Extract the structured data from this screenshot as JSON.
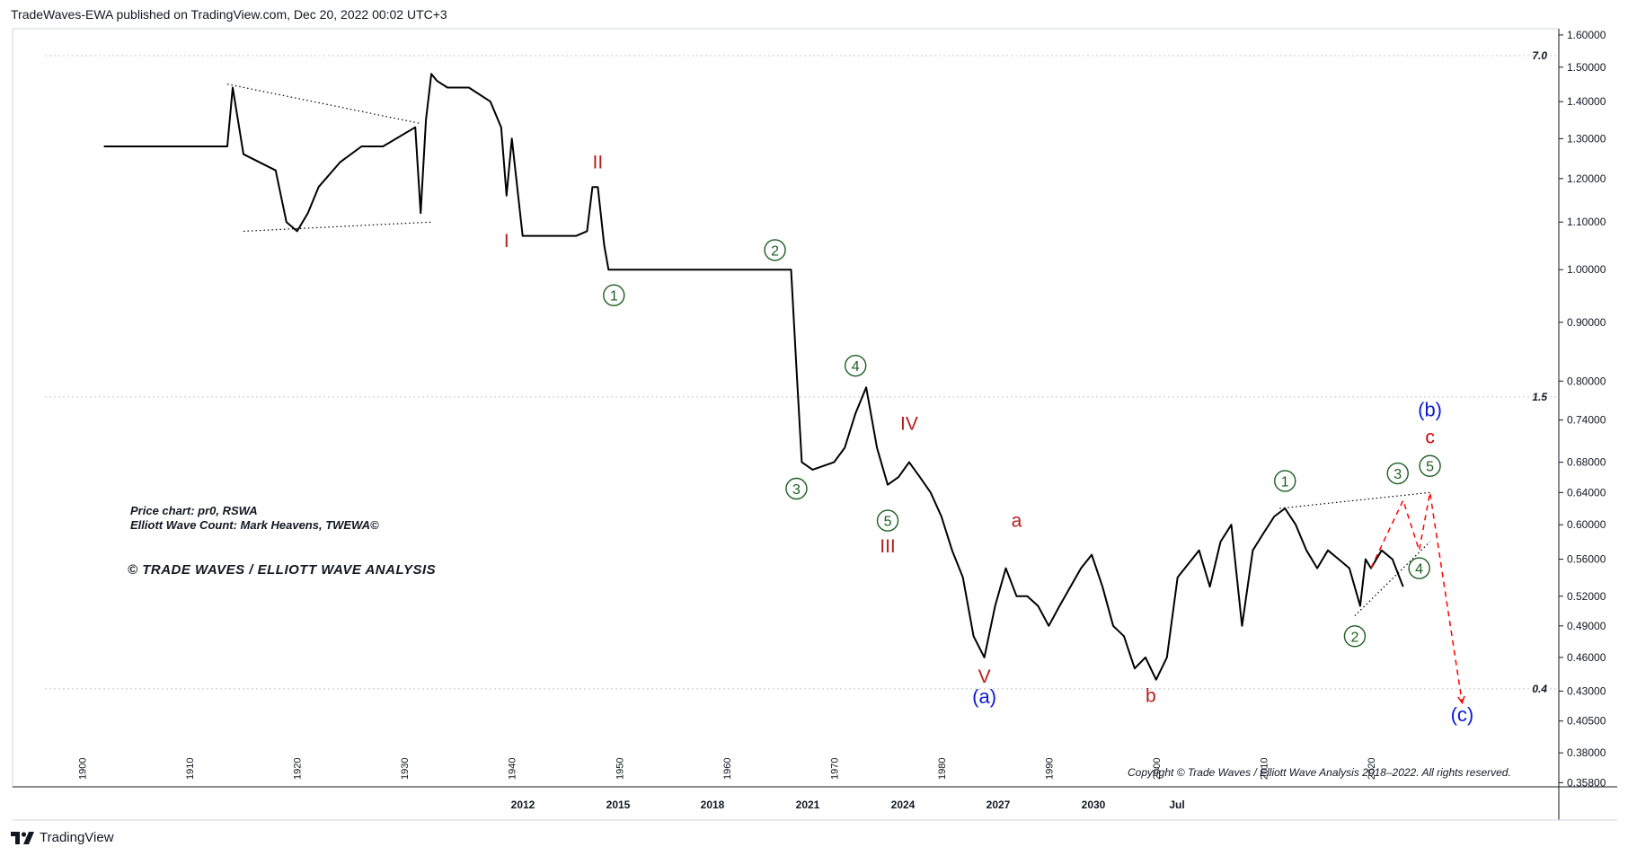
{
  "header": {
    "published": "TradeWaves-EWA published on TradingView.com, Dec 20, 2022 00:02 UTC+3"
  },
  "footer": {
    "brand": "TradingView",
    "logo_icon": "tradingview-logo-icon"
  },
  "chart_data": {
    "type": "line",
    "title": "",
    "scale": "log",
    "grid": true,
    "ylim": [
      0.355,
      1.62
    ],
    "y_ticks": [
      "1.60000",
      "1.50000",
      "1.40000",
      "1.30000",
      "1.20000",
      "1.10000",
      "1.00000",
      "0.90000",
      "0.80000",
      "0.74000",
      "0.68000",
      "0.64000",
      "0.60000",
      "0.56000",
      "0.52000",
      "0.49000",
      "0.46000",
      "0.43000",
      "0.40500",
      "0.38000",
      "0.35800"
    ],
    "x_ticks_bottom": [
      "2012",
      "2015",
      "2018",
      "2021",
      "2024",
      "2027",
      "2030",
      "Jul"
    ],
    "x_ticks_rotated": [
      "1900",
      "1910",
      "1920",
      "1930",
      "1940",
      "1950",
      "1960",
      "1970",
      "1980",
      "1990",
      "2000",
      "2010",
      "2020"
    ],
    "overlay_scale_labels": [
      "7.0",
      "1.5",
      "0.4"
    ],
    "series": [
      {
        "color": "#000000",
        "x": [
          1902,
          1912,
          1913.5,
          1914,
          1915,
          1918,
          1919,
          1920,
          1921,
          1922,
          1924,
          1926,
          1928,
          1931,
          1931.5,
          1932,
          1932.5,
          1933,
          1934,
          1936,
          1938,
          1939,
          1939.5,
          1940,
          1941,
          1946,
          1947,
          1947.5,
          1948,
          1948.6,
          1949,
          1950,
          1955,
          1960,
          1966,
          1966.5,
          1967,
          1968,
          1970,
          1971,
          1972,
          1973,
          1974,
          1975,
          1976,
          1977,
          1978,
          1979,
          1980,
          1981,
          1982,
          1983,
          1984,
          1985,
          1986,
          1987,
          1988,
          1989,
          1990,
          1991,
          1993,
          1994,
          1995,
          1996,
          1997,
          1998,
          1999,
          2000,
          2001,
          2002,
          2004,
          2005,
          2006,
          2007,
          2008,
          2009,
          2010,
          2011,
          2012,
          2013,
          2014,
          2015,
          2016,
          2017,
          2018,
          2019,
          2019.5,
          2020,
          2021,
          2022,
          2023
        ],
        "y": [
          1.28,
          1.28,
          1.28,
          1.44,
          1.26,
          1.22,
          1.1,
          1.08,
          1.12,
          1.18,
          1.24,
          1.28,
          1.28,
          1.33,
          1.12,
          1.35,
          1.48,
          1.46,
          1.44,
          1.44,
          1.4,
          1.33,
          1.16,
          1.3,
          1.07,
          1.07,
          1.08,
          1.18,
          1.18,
          1.05,
          1.0,
          1.0,
          1.0,
          1.0,
          1.0,
          0.82,
          0.68,
          0.67,
          0.68,
          0.7,
          0.75,
          0.79,
          0.7,
          0.65,
          0.66,
          0.68,
          0.66,
          0.64,
          0.61,
          0.57,
          0.54,
          0.48,
          0.46,
          0.51,
          0.55,
          0.52,
          0.52,
          0.51,
          0.49,
          0.51,
          0.55,
          0.565,
          0.53,
          0.49,
          0.48,
          0.45,
          0.46,
          0.44,
          0.46,
          0.54,
          0.57,
          0.53,
          0.58,
          0.6,
          0.49,
          0.57,
          0.59,
          0.61,
          0.62,
          0.6,
          0.57,
          0.55,
          0.57,
          0.56,
          0.55,
          0.51,
          0.56,
          0.55,
          0.57,
          0.56,
          0.53
        ]
      }
    ],
    "trendlines": [
      {
        "style": "dotted",
        "color": "#000000",
        "from": [
          1913.5,
          1.45
        ],
        "to": [
          1931.5,
          1.34
        ]
      },
      {
        "style": "dotted",
        "color": "#000000",
        "from": [
          1915,
          1.08
        ],
        "to": [
          1932.5,
          1.1
        ]
      },
      {
        "style": "dotted",
        "color": "#000000",
        "from": [
          2011.5,
          0.62
        ],
        "to": [
          2025.5,
          0.64
        ]
      },
      {
        "style": "dotted",
        "color": "#000000",
        "from": [
          2018.5,
          0.5
        ],
        "to": [
          2025.5,
          0.58
        ]
      }
    ],
    "projection": {
      "style": "dashed",
      "color": "#ff0000",
      "points": [
        [
          2020,
          0.55
        ],
        [
          2023,
          0.63
        ],
        [
          2024.5,
          0.57
        ],
        [
          2025.5,
          0.64
        ],
        [
          2028.5,
          0.42
        ]
      ]
    },
    "wave_labels": [
      {
        "text": "I",
        "kind": "roman",
        "color": "#b71c1c",
        "x": 1939.5,
        "y": 1.06
      },
      {
        "text": "II",
        "kind": "roman",
        "color": "#b71c1c",
        "x": 1948,
        "y": 1.24
      },
      {
        "text": "1",
        "kind": "circled",
        "color": "#1b5e20",
        "x": 1949.5,
        "y": 0.95
      },
      {
        "text": "2",
        "kind": "circled",
        "color": "#1b5e20",
        "x": 1964.5,
        "y": 1.04
      },
      {
        "text": "3",
        "kind": "circled",
        "color": "#1b5e20",
        "x": 1966.5,
        "y": 0.645
      },
      {
        "text": "4",
        "kind": "circled",
        "color": "#1b5e20",
        "x": 1972,
        "y": 0.825
      },
      {
        "text": "IV",
        "kind": "roman",
        "color": "#b71c1c",
        "x": 1977,
        "y": 0.735
      },
      {
        "text": "5",
        "kind": "circled",
        "color": "#1b5e20",
        "x": 1975,
        "y": 0.605
      },
      {
        "text": "III",
        "kind": "roman",
        "color": "#b71c1c",
        "x": 1975,
        "y": 0.575
      },
      {
        "text": "a",
        "kind": "letter",
        "color": "#b71c1c",
        "x": 1987,
        "y": 0.605
      },
      {
        "text": "V",
        "kind": "roman",
        "color": "#b71c1c",
        "x": 1984,
        "y": 0.443
      },
      {
        "text": "(a)",
        "kind": "degree",
        "color": "#0d1bd6",
        "x": 1984,
        "y": 0.425
      },
      {
        "text": "b",
        "kind": "letter",
        "color": "#b71c1c",
        "x": 1999.5,
        "y": 0.426
      },
      {
        "text": "1",
        "kind": "circled",
        "color": "#1b5e20",
        "x": 2012,
        "y": 0.655
      },
      {
        "text": "2",
        "kind": "circled",
        "color": "#1b5e20",
        "x": 2018.5,
        "y": 0.48
      },
      {
        "text": "3",
        "kind": "circled",
        "color": "#1b5e20",
        "x": 2022.5,
        "y": 0.665
      },
      {
        "text": "4",
        "kind": "circled",
        "color": "#1b5e20",
        "x": 2024.5,
        "y": 0.55
      },
      {
        "text": "5",
        "kind": "circled",
        "color": "#1b5e20",
        "x": 2025.5,
        "y": 0.675
      },
      {
        "text": "c",
        "kind": "letter",
        "color": "#d50000",
        "x": 2025.5,
        "y": 0.715
      },
      {
        "text": "(b)",
        "kind": "degree",
        "color": "#0d1bd6",
        "x": 2025.5,
        "y": 0.755
      },
      {
        "text": "(c)",
        "kind": "degree",
        "color": "#0d1bd6",
        "x": 2028.5,
        "y": 0.41
      }
    ],
    "notes": {
      "price_chart": "Price chart: pr0, RSWA",
      "count_by": "Elliott Wave Count: Mark Heavens, TWEWA©",
      "brand": "© TRADE WAVES / ELLIOTT WAVE ANALYSIS",
      "copyright": "Copyright © Trade Waves / Elliott Wave Analysis 2018–2022. All rights reserved."
    }
  }
}
